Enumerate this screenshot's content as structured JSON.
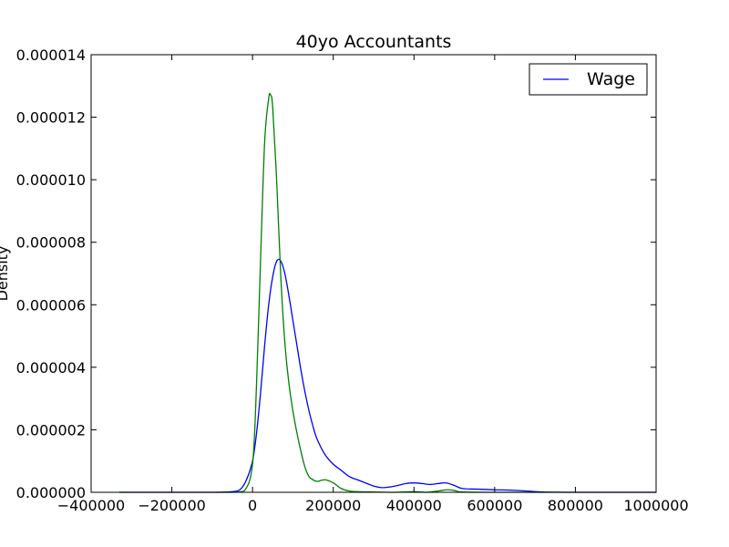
{
  "chart_data": {
    "type": "line",
    "title": "40yo Accountants",
    "xlabel": "",
    "ylabel": "Density",
    "xlim": [
      -400000,
      1000000
    ],
    "ylim": [
      0,
      1.4e-05
    ],
    "xticks": [
      -400000,
      -200000,
      0,
      200000,
      400000,
      600000,
      800000,
      1000000
    ],
    "xtick_labels": [
      "−400000",
      "−200000",
      "0",
      "200000",
      "400000",
      "600000",
      "800000",
      "1000000"
    ],
    "yticks": [
      0,
      2e-06,
      4e-06,
      6e-06,
      8e-06,
      1e-05,
      1.2e-05,
      1.4e-05
    ],
    "ytick_labels": [
      "0.000000",
      "0.000002",
      "0.000004",
      "0.000006",
      "0.000008",
      "0.000010",
      "0.000012",
      "0.000014"
    ],
    "grid": false,
    "legend_position": "top-right",
    "series": [
      {
        "name": "Wage",
        "color": "#0000ff",
        "x": [
          -330000,
          -200000,
          -100000,
          -50000,
          -30000,
          -15000,
          0,
          10000,
          20000,
          30000,
          40000,
          50000,
          60000,
          70000,
          80000,
          90000,
          100000,
          110000,
          120000,
          130000,
          140000,
          150000,
          160000,
          180000,
          200000,
          220000,
          240000,
          260000,
          280000,
          300000,
          320000,
          340000,
          360000,
          380000,
          400000,
          420000,
          440000,
          460000,
          480000,
          500000,
          520000,
          560000,
          600000,
          640000,
          680000,
          720000,
          800000,
          1000000
        ],
        "y": [
          0,
          0,
          0,
          2e-08,
          1e-07,
          4e-07,
          1e-06,
          1.9e-06,
          3.2e-06,
          4.7e-06,
          6e-06,
          6.9e-06,
          7.4e-06,
          7.4e-06,
          7e-06,
          6.3e-06,
          5.5e-06,
          4.7e-06,
          3.9e-06,
          3.2e-06,
          2.6e-06,
          2.1e-06,
          1.7e-06,
          1.2e-06,
          9e-07,
          7e-07,
          5e-07,
          4e-07,
          3e-07,
          2e-07,
          1.5e-07,
          1.7e-07,
          2.2e-07,
          2.8e-07,
          3e-07,
          2.8e-07,
          2.5e-07,
          2.8e-07,
          3e-07,
          2.2e-07,
          1.2e-07,
          1e-07,
          8e-08,
          7e-08,
          4e-08,
          1e-08,
          0,
          0
        ]
      },
      {
        "name": "",
        "color": "#008000",
        "x": [
          -330000,
          -200000,
          -100000,
          -50000,
          -20000,
          0,
          10000,
          20000,
          30000,
          40000,
          45000,
          50000,
          60000,
          70000,
          80000,
          90000,
          100000,
          110000,
          120000,
          130000,
          140000,
          150000,
          160000,
          180000,
          200000,
          220000,
          240000,
          260000,
          300000,
          350000,
          400000,
          430000,
          460000,
          480000,
          500000,
          520000,
          600000,
          700000,
          1000000
        ],
        "y": [
          0,
          0,
          0,
          0,
          5e-08,
          9e-07,
          3.5e-06,
          7.5e-06,
          1.12e-05,
          1.26e-05,
          1.27e-05,
          1.23e-05,
          9.9e-06,
          6.9e-06,
          4.8e-06,
          3.5e-06,
          2.6e-06,
          1.9e-06,
          1.3e-06,
          8e-07,
          5e-07,
          4e-07,
          3.5e-07,
          4e-07,
          3e-07,
          1.2e-07,
          4e-08,
          2e-08,
          1e-08,
          0,
          2e-08,
          0,
          4e-08,
          8e-08,
          6e-08,
          1e-08,
          0,
          0,
          0
        ]
      }
    ]
  }
}
